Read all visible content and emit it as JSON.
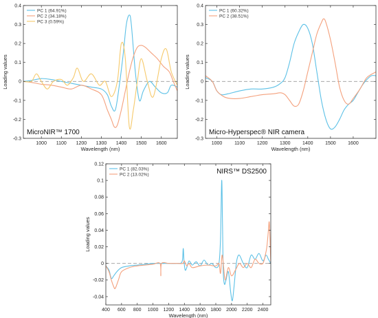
{
  "chart_data": [
    {
      "type": "line",
      "title": "MicroNIR™ 1700",
      "xlabel": "Wavelength (nm)",
      "ylabel": "Loading values",
      "xlim": [
        910,
        1680
      ],
      "ylim": [
        -0.3,
        0.4
      ],
      "xticks": [
        1000,
        1100,
        1200,
        1300,
        1400,
        1500,
        1600
      ],
      "xtick_labels": [
        "1000",
        "1100",
        "1200",
        "1300",
        "1400",
        "1500",
        "1600"
      ],
      "yticks": [
        -0.3,
        -0.2,
        -0.1,
        0,
        0.1,
        0.2,
        0.3,
        0.4
      ],
      "ytick_labels": [
        "-0.3",
        "-0.2",
        "-0.1",
        "0",
        "0.1",
        "0.2",
        "0.3",
        "0.4"
      ],
      "zero_line": true,
      "legend_position": "top-left",
      "title_position": "bottom-left",
      "series": [
        {
          "name": "PC 1 (64.91%)",
          "color": "#5bc0e6",
          "x": [
            910,
            950,
            1000,
            1050,
            1100,
            1150,
            1200,
            1250,
            1300,
            1330,
            1350,
            1370,
            1390,
            1410,
            1425,
            1440,
            1450,
            1470,
            1490,
            1510,
            1540,
            1570,
            1600,
            1630,
            1650,
            1680
          ],
          "y": [
            0.0,
            0.005,
            0.015,
            0.01,
            0.0,
            -0.01,
            -0.02,
            -0.03,
            -0.04,
            -0.07,
            -0.13,
            -0.15,
            -0.02,
            0.15,
            0.3,
            0.35,
            0.3,
            0.05,
            -0.1,
            -0.05,
            0.0,
            -0.03,
            -0.06,
            -0.06,
            -0.02,
            -0.03
          ]
        },
        {
          "name": "PC 2 (34.18%)",
          "color": "#f4a07c",
          "x": [
            910,
            950,
            1000,
            1050,
            1100,
            1150,
            1200,
            1250,
            1300,
            1330,
            1350,
            1365,
            1380,
            1400,
            1420,
            1440,
            1460,
            1480,
            1500,
            1520,
            1550,
            1580,
            1610,
            1640,
            1660,
            1680
          ],
          "y": [
            0.0,
            -0.005,
            -0.015,
            -0.02,
            -0.03,
            -0.04,
            -0.02,
            -0.04,
            -0.07,
            -0.15,
            -0.2,
            -0.24,
            -0.23,
            -0.15,
            -0.05,
            0.05,
            0.13,
            0.18,
            0.19,
            0.18,
            0.15,
            0.12,
            0.08,
            0.05,
            0.0,
            -0.05
          ]
        },
        {
          "name": "PC 3 (0.59%)",
          "color": "#f6c96a",
          "x": [
            910,
            950,
            975,
            1000,
            1030,
            1060,
            1100,
            1130,
            1160,
            1180,
            1210,
            1250,
            1290,
            1320,
            1350,
            1380,
            1400,
            1420,
            1440,
            1460,
            1480,
            1500,
            1530,
            1560,
            1600,
            1625,
            1650,
            1680
          ],
          "y": [
            0.0,
            0.0,
            0.04,
            0.0,
            -0.04,
            0.0,
            0.01,
            -0.02,
            0.02,
            0.07,
            0.0,
            0.04,
            -0.02,
            0.0,
            -0.08,
            0.0,
            0.2,
            0.12,
            -0.24,
            -0.15,
            0.0,
            0.12,
            0.0,
            -0.08,
            0.12,
            0.17,
            0.05,
            -0.02
          ]
        }
      ]
    },
    {
      "type": "line",
      "title": "Micro-Hyperspec® NIR camera",
      "xlabel": "Wavelength (nm)",
      "ylabel": "Loading values",
      "xlim": [
        950,
        1700
      ],
      "ylim": [
        -0.3,
        0.4
      ],
      "xticks": [
        1000,
        1100,
        1200,
        1300,
        1400,
        1500,
        1600
      ],
      "xtick_labels": [
        "1000",
        "1100",
        "1200",
        "1300",
        "1400",
        "1500",
        "1600"
      ],
      "yticks": [
        -0.3,
        -0.2,
        -0.1,
        0,
        0.1,
        0.2,
        0.3,
        0.4
      ],
      "ytick_labels": [
        "-0.3",
        "-0.2",
        "-0.1",
        "0",
        "0.1",
        "0.2",
        "0.3",
        "0.4"
      ],
      "zero_line": true,
      "legend_position": "top-left",
      "title_position": "bottom-left",
      "series": [
        {
          "name": "PC 1 (60.32%)",
          "color": "#5bc0e6",
          "x": [
            950,
            980,
            1000,
            1020,
            1050,
            1100,
            1150,
            1200,
            1250,
            1280,
            1300,
            1320,
            1340,
            1360,
            1380,
            1400,
            1420,
            1440,
            1460,
            1480,
            1500,
            1520,
            1540,
            1560,
            1580,
            1600,
            1620,
            1640,
            1660,
            1680,
            1700
          ],
          "y": [
            0.02,
            0.0,
            -0.05,
            -0.07,
            -0.065,
            -0.05,
            -0.04,
            -0.04,
            -0.03,
            -0.01,
            0.02,
            0.1,
            0.2,
            0.26,
            0.3,
            0.28,
            0.2,
            0.05,
            -0.1,
            -0.2,
            -0.25,
            -0.24,
            -0.2,
            -0.15,
            -0.12,
            -0.1,
            -0.06,
            -0.02,
            0.01,
            0.03,
            0.03
          ]
        },
        {
          "name": "PC 2 (38.51%)",
          "color": "#f4a07c",
          "x": [
            950,
            980,
            1000,
            1030,
            1060,
            1100,
            1150,
            1200,
            1250,
            1280,
            1300,
            1320,
            1340,
            1360,
            1380,
            1400,
            1420,
            1440,
            1460,
            1470,
            1480,
            1500,
            1520,
            1540,
            1560,
            1580,
            1600,
            1630,
            1660,
            1700
          ],
          "y": [
            0.03,
            0.0,
            -0.05,
            -0.08,
            -0.09,
            -0.09,
            -0.08,
            -0.07,
            -0.065,
            -0.06,
            -0.07,
            -0.1,
            -0.13,
            -0.12,
            -0.05,
            0.05,
            0.15,
            0.25,
            0.31,
            0.33,
            0.31,
            0.22,
            0.1,
            -0.03,
            -0.1,
            -0.12,
            -0.09,
            -0.04,
            0.02,
            0.05
          ]
        }
      ]
    },
    {
      "type": "line",
      "title": "NIRS™ DS2500",
      "xlabel": "Wavelength (nm)",
      "ylabel": "Loading values",
      "xlim": [
        400,
        2500
      ],
      "ylim": [
        -0.05,
        0.12
      ],
      "xticks": [
        400,
        600,
        800,
        1000,
        1200,
        1400,
        1600,
        1800,
        2000,
        2200,
        2400
      ],
      "xtick_labels": [
        "400",
        "600",
        "800",
        "1000",
        "1200",
        "1400",
        "1600",
        "1800",
        "2000",
        "2200",
        "2400"
      ],
      "yticks": [
        -0.04,
        -0.02,
        0,
        0.02,
        0.04,
        0.06,
        0.08,
        0.1,
        0.12
      ],
      "ytick_labels": [
        "-0.04",
        "-0.02",
        "0",
        "0.02",
        "0.04",
        "0.06",
        "0.08",
        "0.1",
        "0.12"
      ],
      "zero_line": true,
      "legend_position": "top-left",
      "title_position": "top-right",
      "series": [
        {
          "name": "PC 1 (82.03%)",
          "color": "#5bc0e6",
          "x": [
            400,
            440,
            470,
            500,
            540,
            600,
            700,
            800,
            900,
            1000,
            1100,
            1200,
            1300,
            1370,
            1385,
            1395,
            1410,
            1430,
            1460,
            1500,
            1550,
            1600,
            1650,
            1700,
            1750,
            1800,
            1840,
            1860,
            1875,
            1885,
            1895,
            1910,
            1930,
            1960,
            1990,
            2010,
            2030,
            2050,
            2070,
            2100,
            2150,
            2200,
            2250,
            2300,
            2350,
            2400,
            2440,
            2470,
            2500
          ],
          "y": [
            -0.003,
            -0.008,
            -0.018,
            -0.015,
            -0.01,
            -0.005,
            -0.003,
            -0.002,
            -0.001,
            0.0,
            0.0,
            0.0,
            0.0,
            0.002,
            0.018,
            0.003,
            -0.008,
            -0.005,
            0.003,
            -0.002,
            0.002,
            -0.003,
            0.004,
            -0.002,
            0.0,
            -0.005,
            0.0,
            0.03,
            0.1,
            0.05,
            -0.01,
            -0.025,
            -0.02,
            -0.01,
            -0.035,
            -0.045,
            -0.03,
            -0.01,
            0.005,
            0.01,
            0.0,
            -0.005,
            0.01,
            0.005,
            0.012,
            0.003,
            0.01,
            0.005,
            0.0
          ]
        },
        {
          "name": "PC 2 (13.02%)",
          "color": "#f4a07c",
          "x": [
            400,
            440,
            470,
            500,
            520,
            560,
            600,
            700,
            800,
            900,
            1000,
            1090,
            1100,
            1110,
            1200,
            1300,
            1380,
            1400,
            1430,
            1460,
            1500,
            1600,
            1700,
            1800,
            1840,
            1860,
            1880,
            1900,
            1920,
            1960,
            2000,
            2050,
            2100,
            2150,
            2200,
            2250,
            2300,
            2350,
            2400,
            2430,
            2450,
            2470,
            2480,
            2490,
            2500
          ],
          "y": [
            -0.003,
            -0.01,
            -0.02,
            -0.028,
            -0.03,
            -0.02,
            -0.01,
            -0.005,
            -0.003,
            -0.002,
            -0.001,
            0.0,
            -0.015,
            0.0,
            0.0,
            0.0,
            0.0,
            0.003,
            -0.003,
            0.0,
            -0.005,
            -0.003,
            -0.002,
            -0.003,
            0.0,
            -0.012,
            0.01,
            -0.005,
            -0.02,
            -0.005,
            -0.015,
            -0.008,
            0.0,
            -0.005,
            0.0,
            -0.005,
            0.005,
            0.0,
            0.0,
            0.01,
            0.02,
            0.04,
            0.05,
            0.03,
            0.0
          ]
        }
      ]
    }
  ]
}
